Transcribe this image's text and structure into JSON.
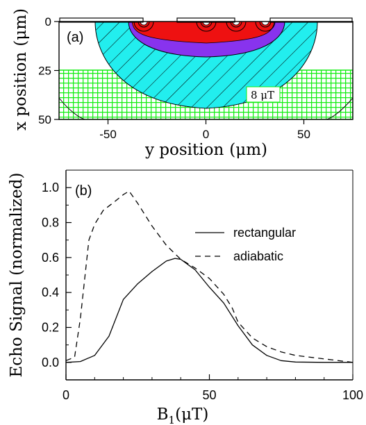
{
  "chart_data": [
    {
      "panel": "(a)",
      "type": "heatmap",
      "xlabel_prefix": "y position",
      "xlabel_unit": "(μm)",
      "ylabel_prefix": "x position",
      "ylabel_unit": "(μm)",
      "xlim": [
        -75,
        75
      ],
      "ylim": [
        50,
        0
      ],
      "xticks": [
        -50,
        0,
        50
      ],
      "yticks": [
        0,
        25,
        50
      ],
      "annotation": "8 μT",
      "field_contours": [
        {
          "region": "deep",
          "color": "#11ee11",
          "pattern": "crosshatch",
          "x_range": [
            25,
            50
          ]
        },
        {
          "region": "mid",
          "color": "#22eeee",
          "pattern": "hatch",
          "y_range": [
            -57,
            57
          ],
          "depth": 44
        },
        {
          "region": "shallow",
          "color": "#8833ee",
          "y_range": [
            -31,
            31
          ],
          "depth": 18
        },
        {
          "region": "strong",
          "color": "#ee1111",
          "y_range": [
            -32,
            33
          ],
          "depth": 11
        }
      ],
      "colors": {
        "red": "#ee1111",
        "purple": "#8833ee",
        "cyan": "#22eeee",
        "green": "#11ee11"
      }
    },
    {
      "panel": "(b)",
      "type": "line",
      "xlabel_main": "B",
      "xlabel_sub": "1",
      "xlabel_unit": "(μT)",
      "ylabel": "Echo Signal (normalized)",
      "xlim": [
        0,
        100
      ],
      "ylim": [
        -0.1,
        1.1
      ],
      "xticks": [
        0,
        50,
        100
      ],
      "yticks": [
        "0.0",
        "0.2",
        "0.4",
        "0.6",
        "0.8",
        "1.0"
      ],
      "legend_position": "right",
      "series": [
        {
          "name": "rectangular",
          "style": "solid",
          "x": [
            0,
            5,
            10,
            15,
            20,
            25,
            30,
            35,
            38,
            40,
            45,
            50,
            55,
            60,
            65,
            70,
            75,
            80,
            90,
            100
          ],
          "y": [
            0.0,
            0.005,
            0.04,
            0.15,
            0.36,
            0.45,
            0.52,
            0.58,
            0.595,
            0.59,
            0.53,
            0.43,
            0.34,
            0.21,
            0.1,
            0.04,
            0.01,
            0.002,
            0.0,
            0.0
          ]
        },
        {
          "name": "adiabatic",
          "style": "dashed",
          "x": [
            0,
            3,
            5,
            7,
            8,
            10,
            13,
            17,
            20,
            22,
            25,
            30,
            35,
            40,
            45,
            50,
            55,
            58,
            60,
            65,
            70,
            75,
            80,
            90,
            100
          ],
          "y": [
            0.01,
            0.03,
            0.25,
            0.55,
            0.7,
            0.79,
            0.87,
            0.92,
            0.96,
            0.98,
            0.91,
            0.78,
            0.67,
            0.59,
            0.54,
            0.48,
            0.39,
            0.31,
            0.23,
            0.14,
            0.09,
            0.06,
            0.04,
            0.02,
            0.0
          ]
        }
      ]
    }
  ]
}
